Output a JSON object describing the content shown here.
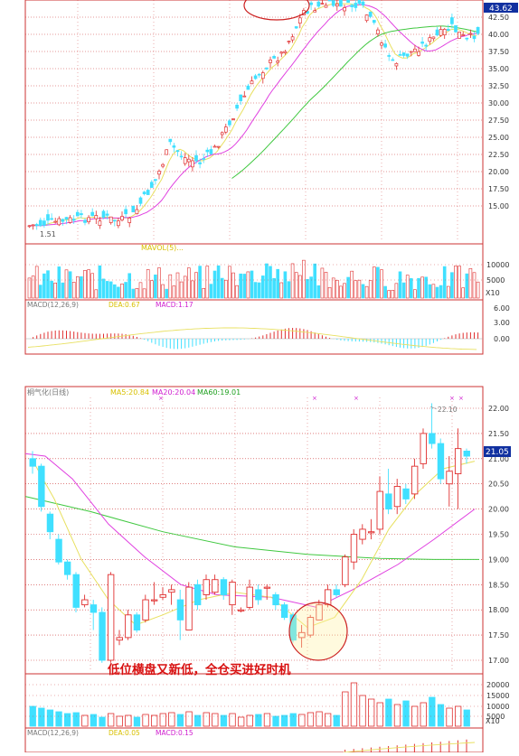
{
  "chart_data": [
    {
      "type": "candlestick",
      "panel": "top-price",
      "price_label": "43.62",
      "low_label": "1.51",
      "y_ticks": [
        15.0,
        17.5,
        20.0,
        22.5,
        25.0,
        27.5,
        30.0,
        32.5,
        35.0,
        37.5,
        40.0,
        42.5
      ],
      "ylim": [
        11.0,
        45.0
      ],
      "volume": {
        "label": "MAVOL(5)...",
        "ticks": [
          "10000",
          "5000"
        ],
        "unit": "X10"
      },
      "macd": {
        "label": "MACD(12,26,9)",
        "dea_label": "DEA:0.67",
        "macd_label": "MACD:1.17",
        "ticks": [
          "6.00",
          "3.00",
          "0.00"
        ]
      }
    },
    {
      "type": "candlestick",
      "panel": "bottom-price",
      "stock_name": "桐气化(日线)",
      "ma5_label": "MA5:20.84",
      "ma20_label": "MA20:20.04",
      "ma60_label": "MA60:19.01",
      "peak_label": "22.10",
      "price_label": "21.05",
      "y_ticks": [
        "22.00",
        "21.50",
        "21.00",
        "20.50",
        "20.00",
        "19.50",
        "19.00",
        "18.50",
        "18.00",
        "17.50",
        "17.00"
      ],
      "ylim": [
        16.75,
        22.25
      ],
      "annotation": "低位横盘又新低，全仓买进好时机",
      "volume": {
        "ticks": [
          "20000",
          "15000",
          "10000",
          "5000"
        ],
        "unit": "X10"
      },
      "macd": {
        "label": "MACD(12,26,9)",
        "dea_label": "DEA:0.05",
        "macd_label": "MACD:0.15"
      }
    }
  ],
  "colors": {
    "up": "#e03030",
    "down": "#40e0ff",
    "ma5": "#e8e060",
    "ma20": "#e040e0",
    "ma60": "#40c840",
    "grid": "#cc3333",
    "axis_text": "#333333",
    "caption": "#d81010"
  }
}
